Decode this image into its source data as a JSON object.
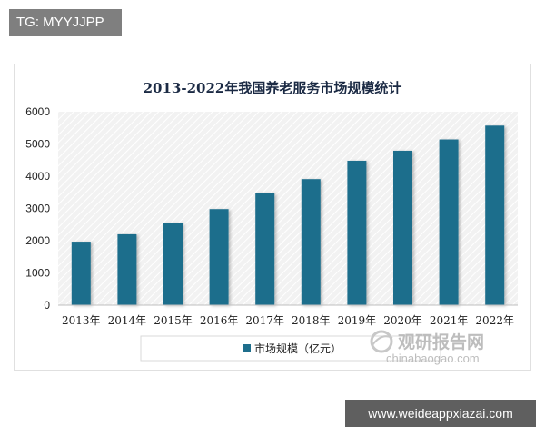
{
  "watermark_top": "TG: MYYJJPP",
  "watermark_bottom": "www.weideappxiazai.com",
  "source_logo": {
    "name_cn": "观研报告网",
    "name_en": "chinabaogao.com"
  },
  "colors": {
    "bar": "#1e6e8c",
    "plot_bg": "#f2f2f2",
    "hatch": "#ffffff"
  },
  "chart_data": {
    "type": "bar",
    "title": "2013-2022年我国养老服务市场规模统计",
    "categories": [
      "2013年",
      "2014年",
      "2015年",
      "2016年",
      "2017年",
      "2018年",
      "2019年",
      "2020年",
      "2021年",
      "2022年"
    ],
    "series": [
      {
        "name": "市场规模（亿元）",
        "values": [
          1970,
          2200,
          2550,
          2980,
          3480,
          3910,
          4480,
          4790,
          5140,
          5570
        ]
      }
    ],
    "yticks": [
      0,
      1000,
      2000,
      3000,
      4000,
      5000,
      6000
    ],
    "ylim": [
      0,
      6000
    ],
    "xlabel": "",
    "ylabel": "",
    "legend": "bottom"
  }
}
